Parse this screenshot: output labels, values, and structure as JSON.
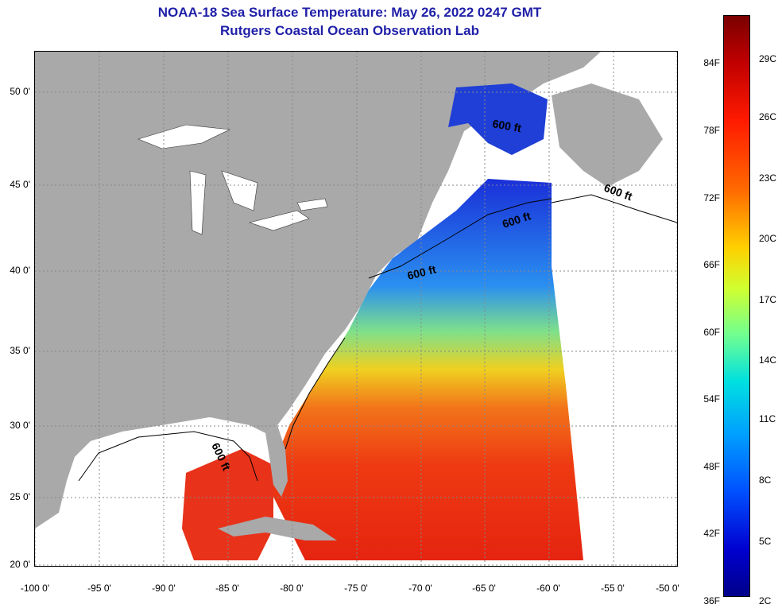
{
  "header": {
    "title_line1": "NOAA-18 Sea Surface Temperature:  May 26, 2022 0247 GMT",
    "title_line2": "Rutgers Coastal Ocean Observation Lab"
  },
  "map": {
    "lat_labels": [
      "50 0'",
      "45 0'",
      "40 0'",
      "35 0'",
      "30 0'",
      "25 0'",
      "20 0'"
    ],
    "lon_labels": [
      "-100 0'",
      "-95 0'",
      "-90 0'",
      "-85 0'",
      "-80 0'",
      "-75 0'",
      "-70 0'",
      "-65 0'",
      "-60 0'",
      "-55 0'",
      "-50 0'"
    ],
    "contour_label": "600 ft",
    "colors": {
      "land": "#a9a9a9",
      "cloud": "#ffffff",
      "gulf_water": "#ffffff",
      "cold": "#1f3fd6",
      "warm": "#ec2a10"
    }
  },
  "colorbar": {
    "fahrenheit": [
      "84F",
      "78F",
      "72F",
      "66F",
      "60F",
      "54F",
      "48F",
      "42F",
      "36F"
    ],
    "celsius": [
      "29C",
      "26C",
      "23C",
      "20C",
      "17C",
      "14C",
      "11C",
      "8C",
      "5C",
      "2C"
    ]
  }
}
